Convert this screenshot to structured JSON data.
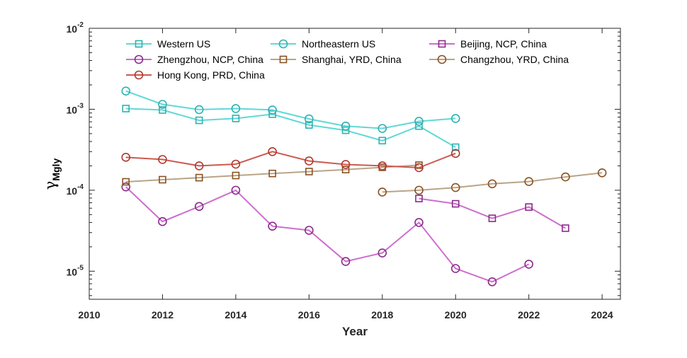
{
  "chart_data": {
    "type": "line",
    "title": "",
    "xlabel": "Year",
    "ylabel": "γ",
    "ylabel_subscript": "Mgly",
    "y_scale": "log",
    "xlim": [
      2010,
      2024.5
    ],
    "ylim": [
      4.5e-06,
      0.01
    ],
    "x_ticks": [
      2010,
      2012,
      2014,
      2016,
      2018,
      2020,
      2022,
      2024
    ],
    "y_ticks": [
      {
        "value": 0.01,
        "base": "10",
        "exp": "-2"
      },
      {
        "value": 0.001,
        "base": "10",
        "exp": "-3"
      },
      {
        "value": 0.0001,
        "base": "10",
        "exp": "-4"
      },
      {
        "value": 1e-05,
        "base": "10",
        "exp": "-5"
      }
    ],
    "grid": false,
    "legend_position": "top",
    "series": [
      {
        "name": "Western US",
        "color": "#5fd8d8",
        "marker_color": "#30b0b0",
        "marker": "square",
        "x": [
          2011,
          2012,
          2013,
          2014,
          2015,
          2016,
          2017,
          2018,
          2019,
          2020
        ],
        "y": [
          0.00102,
          0.00098,
          0.00073,
          0.00077,
          0.00087,
          0.00064,
          0.00055,
          0.00041,
          0.00062,
          0.00034
        ]
      },
      {
        "name": "Northeastern US",
        "color": "#5fd8d8",
        "marker_color": "#30b0b0",
        "marker": "circle",
        "x": [
          2011,
          2012,
          2013,
          2014,
          2015,
          2016,
          2017,
          2018,
          2019,
          2020
        ],
        "y": [
          0.00168,
          0.00115,
          0.00099,
          0.00102,
          0.00098,
          0.00076,
          0.00062,
          0.00058,
          0.00071,
          0.00077
        ]
      },
      {
        "name": "Beijing, NCP, China",
        "color": "#cc6ecc",
        "marker_color": "#8a2a8a",
        "marker": "square",
        "x": [
          2019,
          2020,
          2021,
          2022,
          2023
        ],
        "y": [
          7.9e-05,
          6.8e-05,
          4.5e-05,
          6.2e-05,
          3.4e-05
        ]
      },
      {
        "name": "Zhengzhou, NCP, China",
        "color": "#cc6ecc",
        "marker_color": "#8a2a8a",
        "marker": "circle",
        "x": [
          2011,
          2012,
          2013,
          2014,
          2015,
          2016,
          2017,
          2018,
          2019,
          2020,
          2021,
          2022
        ],
        "y": [
          0.00011,
          4.1e-05,
          6.3e-05,
          0.0001,
          3.6e-05,
          3.2e-05,
          1.32e-05,
          1.68e-05,
          4e-05,
          1.08e-05,
          7.4e-06,
          1.22e-05
        ]
      },
      {
        "name": "Shanghai, YRD, China",
        "color": "#b9a488",
        "marker_color": "#8a5222",
        "marker": "square",
        "x": [
          2011,
          2012,
          2013,
          2014,
          2015,
          2016,
          2017,
          2018,
          2019
        ],
        "y": [
          0.000127,
          0.000135,
          0.000143,
          0.000152,
          0.000161,
          0.00017,
          0.00018,
          0.000192,
          0.000204
        ]
      },
      {
        "name": "Changzhou, YRD, China",
        "color": "#b9a488",
        "marker_color": "#8a5222",
        "marker": "circle",
        "x": [
          2018,
          2019,
          2020,
          2021,
          2022,
          2023,
          2024
        ],
        "y": [
          9.5e-05,
          0.0001,
          0.000108,
          0.00012,
          0.000128,
          0.000146,
          0.000164
        ]
      },
      {
        "name": "Hong Kong, PRD, China",
        "color": "#cc5a50",
        "marker_color": "#b03830",
        "marker": "circle",
        "x": [
          2011,
          2012,
          2013,
          2014,
          2015,
          2016,
          2017,
          2018,
          2019,
          2020
        ],
        "y": [
          0.000255,
          0.00024,
          0.0002,
          0.00021,
          0.0003,
          0.00023,
          0.000208,
          0.0002,
          0.00019,
          0.000285
        ]
      }
    ],
    "legend_layout": [
      [
        0,
        3,
        6
      ],
      [
        1,
        4
      ],
      [
        2,
        5
      ]
    ]
  }
}
